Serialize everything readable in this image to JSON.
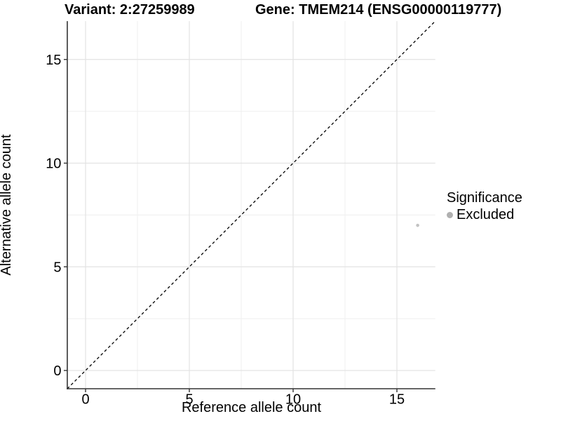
{
  "titles": {
    "variant": "Variant: 2:27259989",
    "gene": "Gene: TMEM214 (ENSG00000119777)"
  },
  "chart_data": {
    "type": "scatter",
    "xlabel": "Reference allele count",
    "ylabel": "Alternative allele count",
    "xlim": [
      -0.88,
      16.85
    ],
    "ylim": [
      -0.88,
      16.85
    ],
    "x_ticks": [
      0,
      5,
      10,
      15
    ],
    "y_ticks": [
      0,
      5,
      10,
      15
    ],
    "x_minor_ticks": [
      2.5,
      7.5,
      12.5
    ],
    "y_minor_ticks": [
      2.5,
      7.5,
      12.5
    ],
    "grid": true,
    "identity_line": {
      "type": "y=x",
      "style": "dashed",
      "color": "#000000"
    },
    "series": [
      {
        "name": "Excluded",
        "color": "#c3c3c3",
        "points": [
          {
            "x": 16,
            "y": 7
          }
        ]
      }
    ],
    "legend": {
      "title": "Significance",
      "position": "right",
      "entries": [
        {
          "label": "Excluded",
          "color": "#b0b0b0"
        }
      ]
    },
    "style": {
      "axis_color": "#333333",
      "grid_major_color": "#e3e3e3",
      "grid_minor_color": "#efefef",
      "tick_label_color": "#000000",
      "background": "#ffffff"
    }
  }
}
